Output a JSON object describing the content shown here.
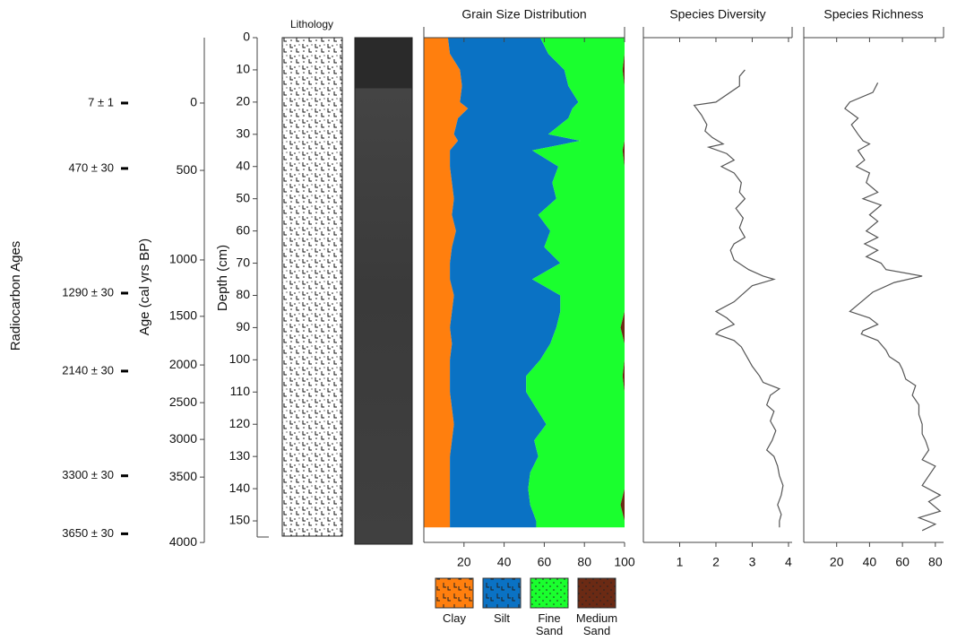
{
  "chart_data": [
    {
      "type": "radiocarbon",
      "label": "Radiocarbon Ages",
      "labels": [
        "7 ± 1",
        "470 ± 30",
        "1290 ± 30",
        "2140 ± 30",
        "3300 ± 30",
        "3650 ± 30"
      ],
      "depths": [
        20.3,
        40.6,
        79.3,
        103.5,
        136,
        154
      ]
    },
    {
      "type": "age-axis",
      "ylabel": "Age (cal yrs BP)",
      "ticks": [
        0,
        500,
        1000,
        1500,
        2000,
        2500,
        3000,
        3500,
        4000
      ],
      "tick_depths": [
        20.3,
        41.2,
        69,
        86.5,
        101.6,
        113.3,
        124.7,
        136.4,
        156.7
      ]
    },
    {
      "type": "depth-axis",
      "ylabel": "Depth (cm)",
      "ylim": [
        0,
        155
      ],
      "yticks": [
        0,
        10,
        20,
        30,
        40,
        50,
        60,
        70,
        80,
        90,
        100,
        110,
        120,
        130,
        140,
        150
      ]
    },
    {
      "type": "lithology",
      "title": "Lithology"
    },
    {
      "type": "stacked-area",
      "title": "Grain Size Distribution",
      "xlim": [
        0,
        100
      ],
      "xticks": [
        20,
        40,
        60,
        80,
        100
      ],
      "depth": [
        0,
        5,
        10,
        15,
        20,
        22,
        25,
        30,
        32,
        35,
        40,
        45,
        50,
        55,
        60,
        65,
        70,
        75,
        80,
        85,
        90,
        95,
        100,
        105,
        110,
        115,
        120,
        125,
        130,
        135,
        140,
        145,
        150,
        152
      ],
      "series": [
        {
          "name": "Clay",
          "color": "#ff7f0e",
          "values": [
            12,
            13,
            18,
            19,
            18,
            22,
            17,
            15,
            17,
            13,
            13,
            14,
            15,
            14,
            16,
            14,
            13,
            13,
            15,
            14,
            13,
            14,
            13,
            13,
            13,
            14,
            15,
            14,
            13,
            13,
            13,
            13,
            13,
            13
          ]
        },
        {
          "name": "Silt",
          "color": "#0a72c4",
          "values": [
            46,
            49,
            52,
            53,
            59,
            52,
            55,
            47,
            61,
            41,
            54,
            50,
            51,
            43,
            47,
            46,
            55,
            41,
            53,
            54,
            53,
            49,
            45,
            38,
            38,
            42,
            46,
            41,
            44,
            40,
            39,
            40,
            43,
            43
          ]
        },
        {
          "name": "Fine Sand",
          "color": "#1aff2e",
          "values": [
            42,
            38,
            29,
            28,
            23,
            26,
            28,
            38,
            22,
            45,
            33,
            36,
            34,
            43,
            37,
            40,
            32,
            46,
            32,
            32,
            32,
            37,
            42,
            48,
            49,
            44,
            39,
            45,
            43,
            47,
            48,
            45,
            44,
            44
          ]
        },
        {
          "name": "Medium Sand",
          "color": "#6b2a14",
          "values": [
            0,
            0,
            1,
            0,
            0,
            0,
            0,
            0,
            0,
            1,
            0,
            0,
            0,
            0,
            0,
            0,
            0,
            0,
            0,
            0,
            2,
            0,
            0,
            1,
            0,
            0,
            0,
            0,
            0,
            0,
            0,
            2,
            0,
            0
          ]
        }
      ]
    },
    {
      "type": "line",
      "title": "Species Diversity",
      "xlim": [
        0,
        4.1
      ],
      "xticks": [
        1,
        2,
        3,
        4
      ],
      "color": "#555555",
      "depth": [
        10,
        12,
        15,
        20,
        21,
        24,
        27,
        29,
        31,
        33,
        34,
        36,
        38,
        40,
        42,
        45,
        48,
        50,
        53,
        56,
        59,
        62,
        64,
        66,
        69,
        72,
        74,
        75,
        77,
        80,
        82,
        85,
        87,
        89,
        91,
        92,
        94,
        96,
        98,
        100,
        102,
        105,
        107,
        109,
        111,
        114,
        116,
        119,
        122,
        125,
        128,
        130,
        133,
        136,
        139,
        142,
        145,
        148,
        150,
        152
      ],
      "values": [
        2.8,
        2.65,
        2.65,
        2.0,
        1.4,
        1.6,
        1.75,
        1.7,
        1.9,
        2.2,
        1.8,
        2.3,
        2.5,
        2.15,
        2.5,
        2.7,
        2.65,
        2.8,
        2.55,
        2.75,
        2.65,
        2.8,
        2.5,
        2.4,
        2.5,
        2.9,
        3.3,
        3.6,
        3.0,
        2.7,
        2.5,
        2.0,
        2.3,
        2.5,
        2.1,
        2.0,
        2.5,
        2.7,
        2.8,
        2.9,
        3.0,
        3.2,
        3.3,
        3.75,
        3.5,
        3.4,
        3.6,
        3.5,
        3.65,
        3.55,
        3.4,
        3.6,
        3.7,
        3.75,
        3.85,
        3.8,
        3.7,
        3.8,
        3.75,
        3.75
      ]
    },
    {
      "type": "line",
      "title": "Species Richness",
      "xlim": [
        0,
        85
      ],
      "xticks": [
        20,
        40,
        60,
        80
      ],
      "color": "#555555",
      "depth": [
        14,
        17,
        20,
        22,
        25,
        27,
        30,
        32,
        33,
        35,
        38,
        40,
        42,
        45,
        48,
        50,
        52,
        55,
        57,
        60,
        62,
        64,
        66,
        68,
        70,
        72,
        74,
        76,
        79,
        82,
        85,
        87,
        89,
        91,
        92,
        94,
        97,
        99,
        101,
        103,
        106,
        108,
        111,
        114,
        117,
        120,
        123,
        125,
        128,
        131,
        133,
        136,
        139,
        142,
        144,
        147,
        149,
        151,
        153
      ],
      "values": [
        45,
        42,
        28,
        25,
        33,
        29,
        33,
        36,
        40,
        33,
        37,
        32,
        40,
        38,
        45,
        36,
        47,
        40,
        45,
        38,
        45,
        37,
        45,
        38,
        47,
        50,
        72,
        55,
        42,
        35,
        28,
        40,
        45,
        36,
        35,
        45,
        50,
        52,
        58,
        60,
        62,
        68,
        66,
        70,
        70,
        72,
        72,
        74,
        76,
        72,
        80,
        76,
        72,
        83,
        76,
        83,
        70,
        80,
        72
      ]
    }
  ]
}
